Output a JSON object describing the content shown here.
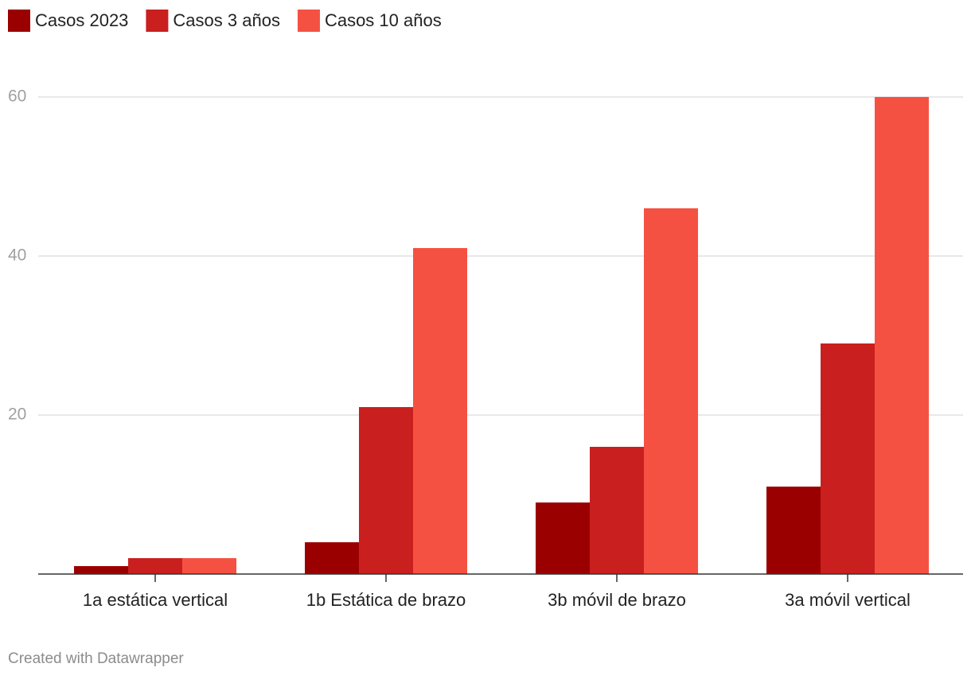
{
  "chart_data": {
    "type": "bar",
    "categories": [
      "1a estática vertical",
      "1b Estática de brazo",
      "3b móvil de brazo",
      "3a móvil vertical"
    ],
    "series": [
      {
        "name": "Casos 2023",
        "color": "#9b0000",
        "values": [
          1,
          4,
          9,
          11
        ]
      },
      {
        "name": "Casos 3 años",
        "color": "#c91f1f",
        "values": [
          2,
          21,
          16,
          29
        ]
      },
      {
        "name": "Casos 10 años",
        "color": "#f55142",
        "values": [
          2,
          41,
          46,
          60
        ]
      }
    ],
    "ylim": [
      0,
      60
    ],
    "yticks": [
      20,
      40,
      60
    ],
    "grid": true,
    "footer": "Created with Datawrapper"
  }
}
